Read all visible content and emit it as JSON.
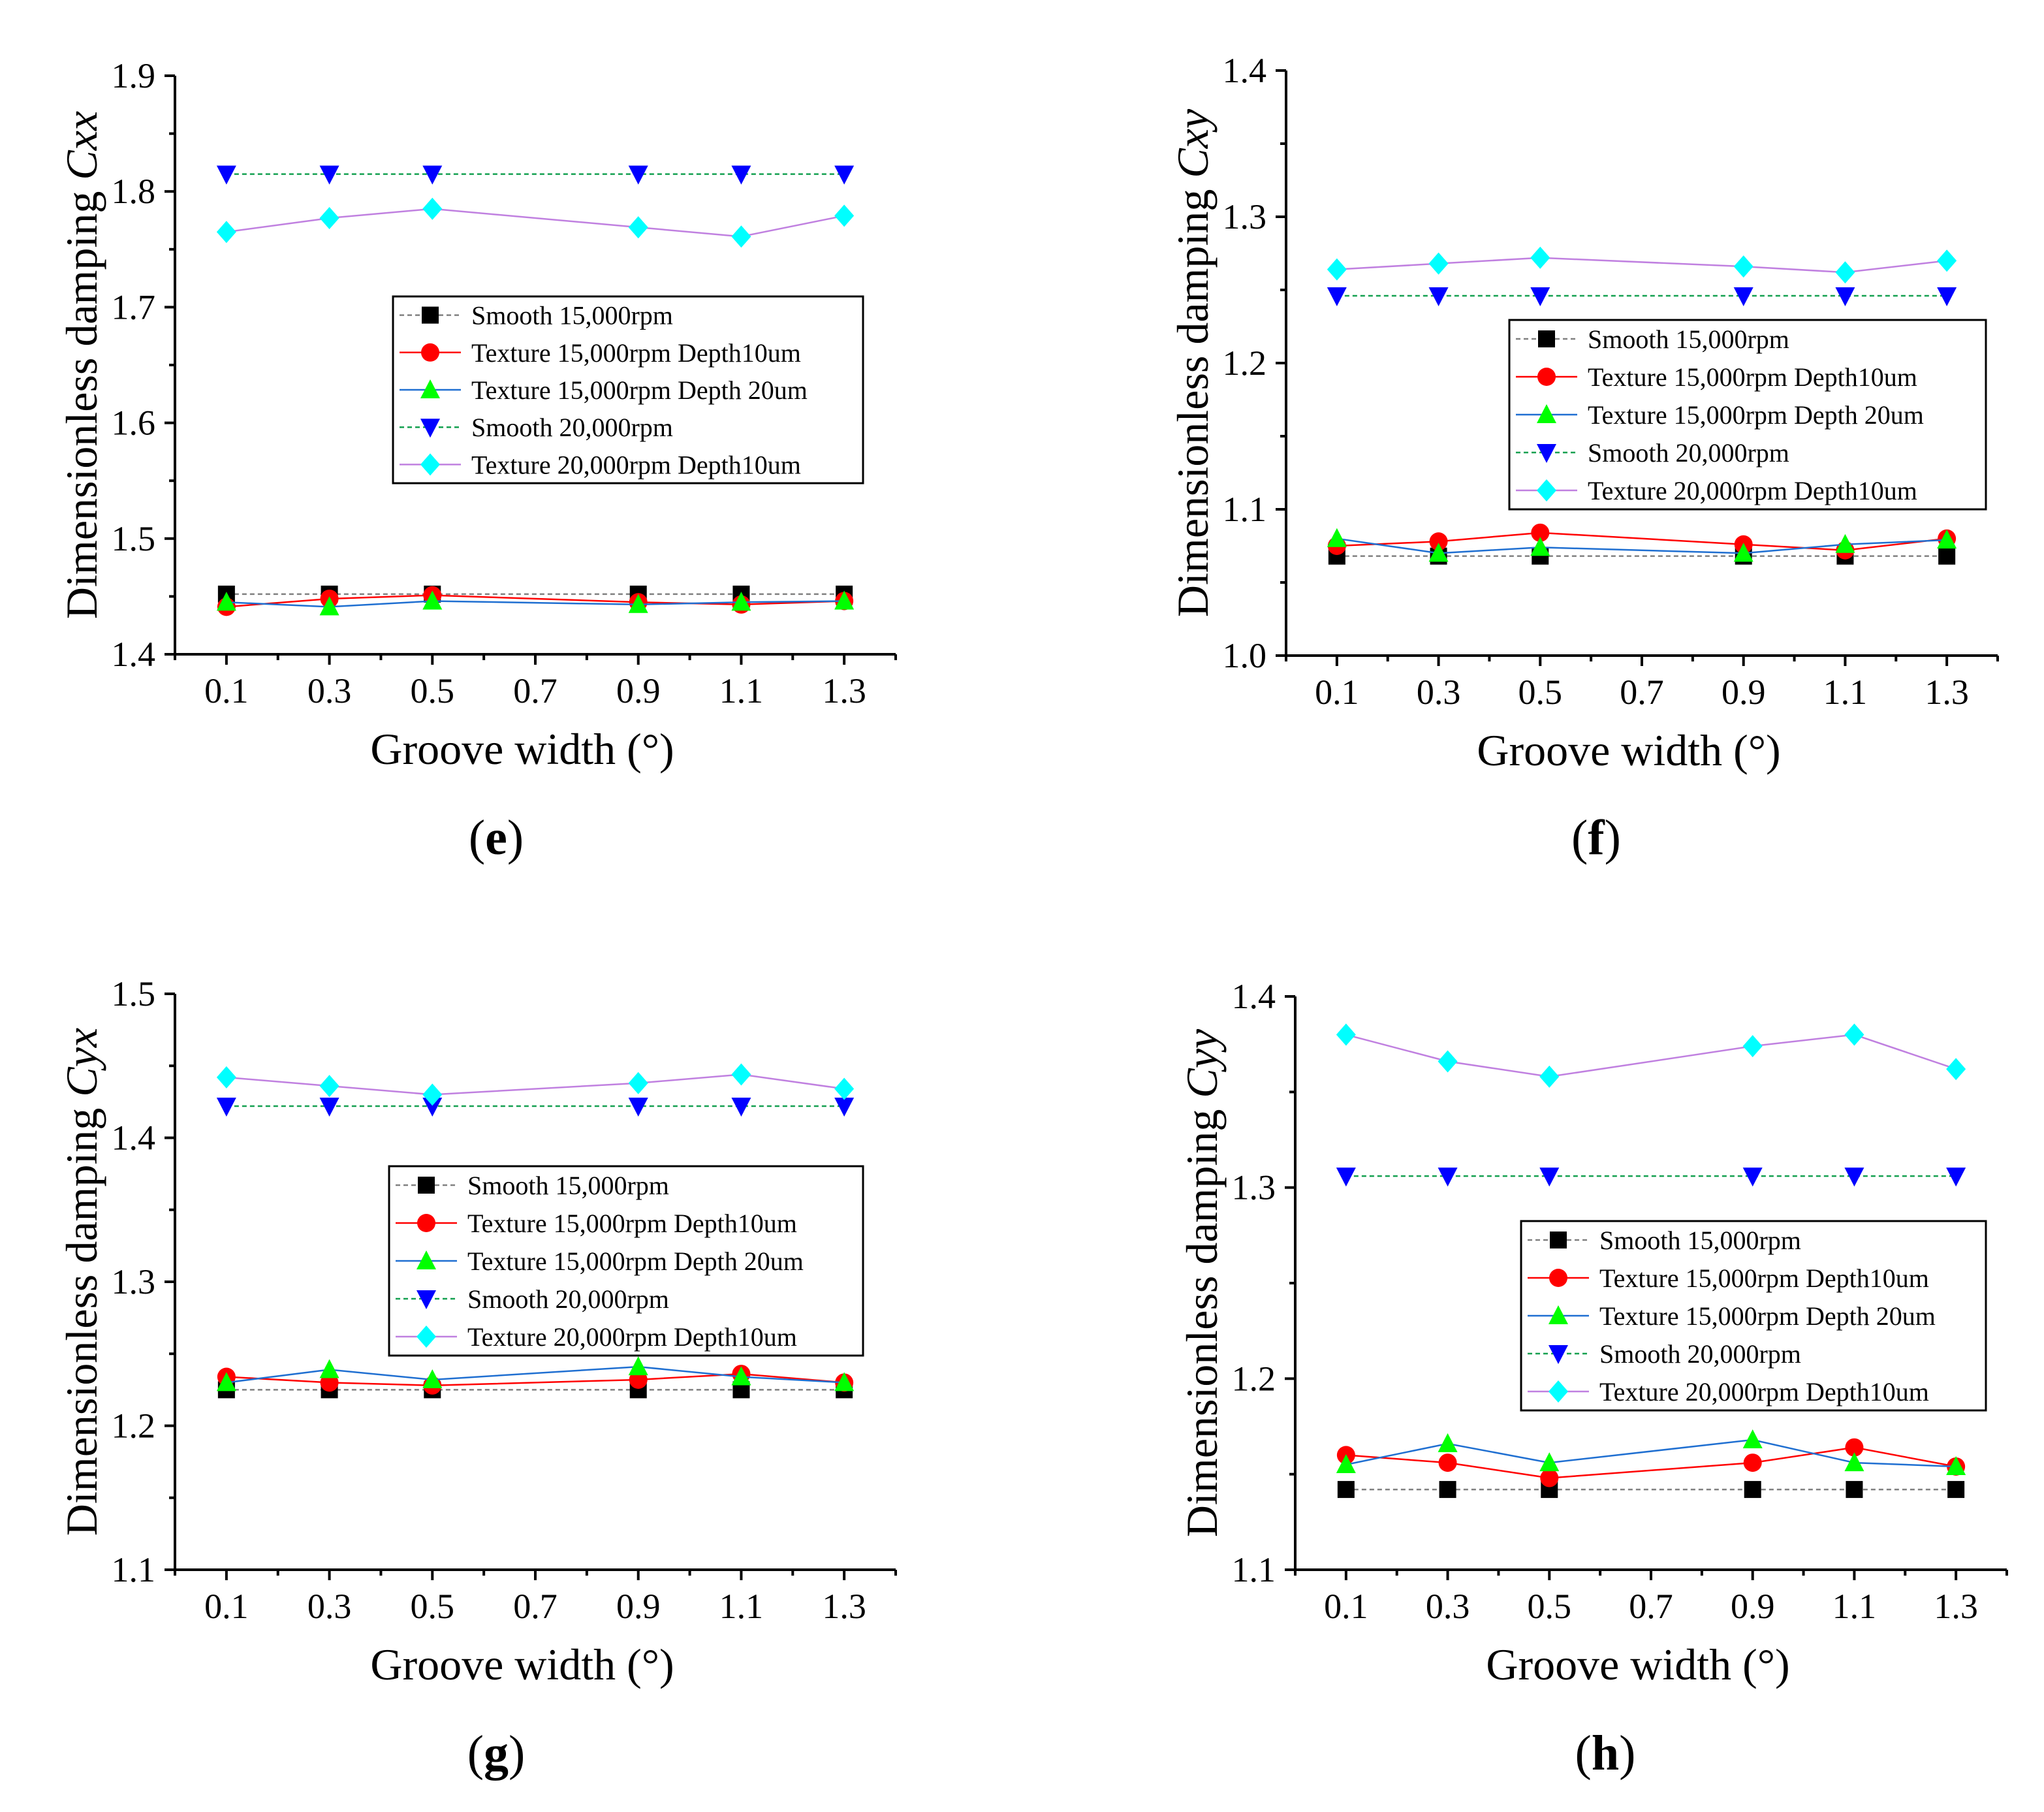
{
  "figure": {
    "x_label_text": "Groove width (°)",
    "y_label_prefix": "Dimensionless damping "
  },
  "legend_names": [
    "Smooth 15,000rpm",
    "Texture 15,000rpm Depth10um",
    "Texture 15,000rpm Depth 20um",
    "Smooth 20,000rpm",
    "Texture 20,000rpm Depth10um"
  ],
  "series_styles": [
    {
      "color": "#000000",
      "line_color": "#808080",
      "marker": "square",
      "dash": true
    },
    {
      "color": "#ff0000",
      "line_color": "#ff0000",
      "marker": "circle",
      "dash": false
    },
    {
      "color": "#00ff00",
      "line_color": "#1f6fd1",
      "marker": "triangle-up",
      "dash": false
    },
    {
      "color": "#0000ff",
      "line_color": "#14a050",
      "marker": "triangle-down",
      "dash": true
    },
    {
      "color": "#00ffff",
      "line_color": "#c080e0",
      "marker": "diamond",
      "dash": false
    }
  ],
  "chart_data": [
    {
      "type": "line",
      "panel_label": "e",
      "title": "",
      "xlabel": "Groove width (°)",
      "ylabel_var": "Cxx",
      "x": [
        0.1,
        0.3,
        0.5,
        0.9,
        1.1,
        1.3
      ],
      "xticks": [
        "0.1",
        "0.3",
        "0.5",
        "0.7",
        "0.9",
        "1.1",
        "1.3"
      ],
      "xlim": [
        0.0,
        1.4
      ],
      "ylim": [
        1.4,
        1.9
      ],
      "yticks": [
        "1.4",
        "1.5",
        "1.6",
        "1.7",
        "1.8",
        "1.9"
      ],
      "legend_position": "center-right",
      "series": [
        {
          "name": "Smooth 15,000rpm",
          "values": [
            1.452,
            1.452,
            1.452,
            1.452,
            1.452,
            1.452
          ]
        },
        {
          "name": "Texture 15,000rpm Depth10um",
          "values": [
            1.441,
            1.448,
            1.451,
            1.445,
            1.443,
            1.446
          ]
        },
        {
          "name": "Texture 15,000rpm Depth 20um",
          "values": [
            1.445,
            1.441,
            1.446,
            1.443,
            1.445,
            1.446
          ]
        },
        {
          "name": "Smooth 20,000rpm",
          "values": [
            1.815,
            1.815,
            1.815,
            1.815,
            1.815,
            1.815
          ]
        },
        {
          "name": "Texture 20,000rpm Depth10um",
          "values": [
            1.765,
            1.777,
            1.785,
            1.769,
            1.761,
            1.779
          ]
        }
      ]
    },
    {
      "type": "line",
      "panel_label": "f",
      "title": "",
      "xlabel": "Groove width (°)",
      "ylabel_var": "Cxy",
      "x": [
        0.1,
        0.3,
        0.5,
        0.9,
        1.1,
        1.3
      ],
      "xticks": [
        "0.1",
        "0.3",
        "0.5",
        "0.7",
        "0.9",
        "1.1",
        "1.3"
      ],
      "xlim": [
        0.0,
        1.4
      ],
      "ylim": [
        1.0,
        1.4
      ],
      "yticks": [
        "1.0",
        "1.1",
        "1.2",
        "1.3",
        "1.4"
      ],
      "legend_position": "center-right",
      "series": [
        {
          "name": "Smooth 15,000rpm",
          "values": [
            1.068,
            1.068,
            1.068,
            1.068,
            1.068,
            1.068
          ]
        },
        {
          "name": "Texture 15,000rpm Depth10um",
          "values": [
            1.075,
            1.078,
            1.084,
            1.076,
            1.072,
            1.08
          ]
        },
        {
          "name": "Texture 15,000rpm Depth 20um",
          "values": [
            1.08,
            1.07,
            1.074,
            1.07,
            1.076,
            1.079
          ]
        },
        {
          "name": "Smooth 20,000rpm",
          "values": [
            1.246,
            1.246,
            1.246,
            1.246,
            1.246,
            1.246
          ]
        },
        {
          "name": "Texture 20,000rpm Depth10um",
          "values": [
            1.264,
            1.268,
            1.272,
            1.266,
            1.262,
            1.27
          ]
        }
      ]
    },
    {
      "type": "line",
      "panel_label": "g",
      "title": "",
      "xlabel": "Groove width (°)",
      "ylabel_var": "Cyx",
      "x": [
        0.1,
        0.3,
        0.5,
        0.9,
        1.1,
        1.3
      ],
      "xticks": [
        "0.1",
        "0.3",
        "0.5",
        "0.7",
        "0.9",
        "1.1",
        "1.3"
      ],
      "xlim": [
        0.0,
        1.4
      ],
      "ylim": [
        1.1,
        1.5
      ],
      "yticks": [
        "1.1",
        "1.2",
        "1.3",
        "1.4",
        "1.5"
      ],
      "legend_position": "center-right",
      "series": [
        {
          "name": "Smooth 15,000rpm",
          "values": [
            1.225,
            1.225,
            1.225,
            1.225,
            1.225,
            1.225
          ]
        },
        {
          "name": "Texture 15,000rpm Depth10um",
          "values": [
            1.234,
            1.23,
            1.228,
            1.232,
            1.236,
            1.23
          ]
        },
        {
          "name": "Texture 15,000rpm Depth 20um",
          "values": [
            1.23,
            1.239,
            1.232,
            1.241,
            1.234,
            1.23
          ]
        },
        {
          "name": "Smooth 20,000rpm",
          "values": [
            1.422,
            1.422,
            1.422,
            1.422,
            1.422,
            1.422
          ]
        },
        {
          "name": "Texture 20,000rpm Depth10um",
          "values": [
            1.442,
            1.436,
            1.43,
            1.438,
            1.444,
            1.434
          ]
        }
      ]
    },
    {
      "type": "line",
      "panel_label": "h",
      "title": "",
      "xlabel": "Groove width (°)",
      "ylabel_var": "Cyy",
      "x": [
        0.1,
        0.3,
        0.5,
        0.9,
        1.1,
        1.3
      ],
      "xticks": [
        "0.1",
        "0.3",
        "0.5",
        "0.7",
        "0.9",
        "1.1",
        "1.3"
      ],
      "xlim": [
        0.0,
        1.4
      ],
      "ylim": [
        1.1,
        1.4
      ],
      "yticks": [
        "1.1",
        "1.2",
        "1.3",
        "1.4"
      ],
      "legend_position": "lower-right",
      "series": [
        {
          "name": "Smooth 15,000rpm",
          "values": [
            1.142,
            1.142,
            1.142,
            1.142,
            1.142,
            1.142
          ]
        },
        {
          "name": "Texture 15,000rpm Depth10um",
          "values": [
            1.16,
            1.156,
            1.148,
            1.156,
            1.164,
            1.154
          ]
        },
        {
          "name": "Texture 15,000rpm Depth 20um",
          "values": [
            1.155,
            1.166,
            1.156,
            1.168,
            1.156,
            1.154
          ]
        },
        {
          "name": "Smooth 20,000rpm",
          "values": [
            1.306,
            1.306,
            1.306,
            1.306,
            1.306,
            1.306
          ]
        },
        {
          "name": "Texture 20,000rpm Depth10um",
          "values": [
            1.38,
            1.366,
            1.358,
            1.374,
            1.38,
            1.362
          ]
        }
      ]
    }
  ]
}
